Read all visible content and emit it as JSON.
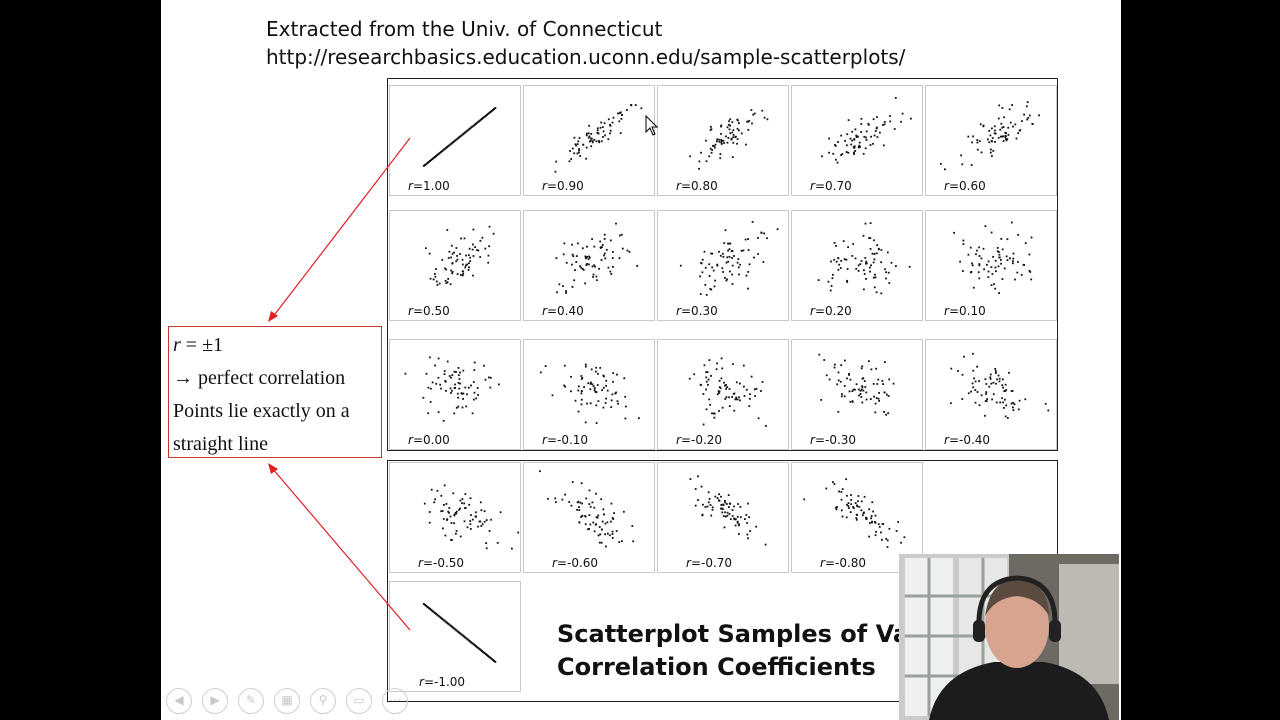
{
  "source": {
    "line1": "Extracted from the Univ. of Connecticut",
    "line2": "http://researchbasics.education.uconn.edu/sample-scatterplots/"
  },
  "plots": [
    {
      "r": "1.00"
    },
    {
      "r": "0.90"
    },
    {
      "r": "0.80"
    },
    {
      "r": "0.70"
    },
    {
      "r": "0.60"
    },
    {
      "r": "0.50"
    },
    {
      "r": "0.40"
    },
    {
      "r": "0.30"
    },
    {
      "r": "0.20"
    },
    {
      "r": "0.10"
    },
    {
      "r": "0.00"
    },
    {
      "r": "-0.10"
    },
    {
      "r": "-0.20"
    },
    {
      "r": "-0.30"
    },
    {
      "r": "-0.40"
    },
    {
      "r": "-0.50"
    },
    {
      "r": "-0.60"
    },
    {
      "r": "-0.70"
    },
    {
      "r": "-0.80"
    },
    {
      "r": "-1.00"
    }
  ],
  "r_prefix": "r",
  "r_sep": "=",
  "callout": {
    "line1_var": "r",
    "line1_rest": " = ±1",
    "line2": "→ perfect correlation",
    "line3": "Points lie exactly on a",
    "line4": "straight line"
  },
  "title": {
    "line1": "Scatterplot Samples of Va",
    "line2": "Correlation Coefficients"
  },
  "colors": {
    "callout_border": "#c0392b",
    "arrow": "#e02020",
    "dots": "#111111"
  },
  "controls": [
    "prev-icon",
    "next-icon",
    "pen-icon",
    "slides-icon",
    "zoom-icon",
    "subtitles-icon",
    "more-icon"
  ],
  "webcam": {
    "content": "presenter video feed"
  }
}
